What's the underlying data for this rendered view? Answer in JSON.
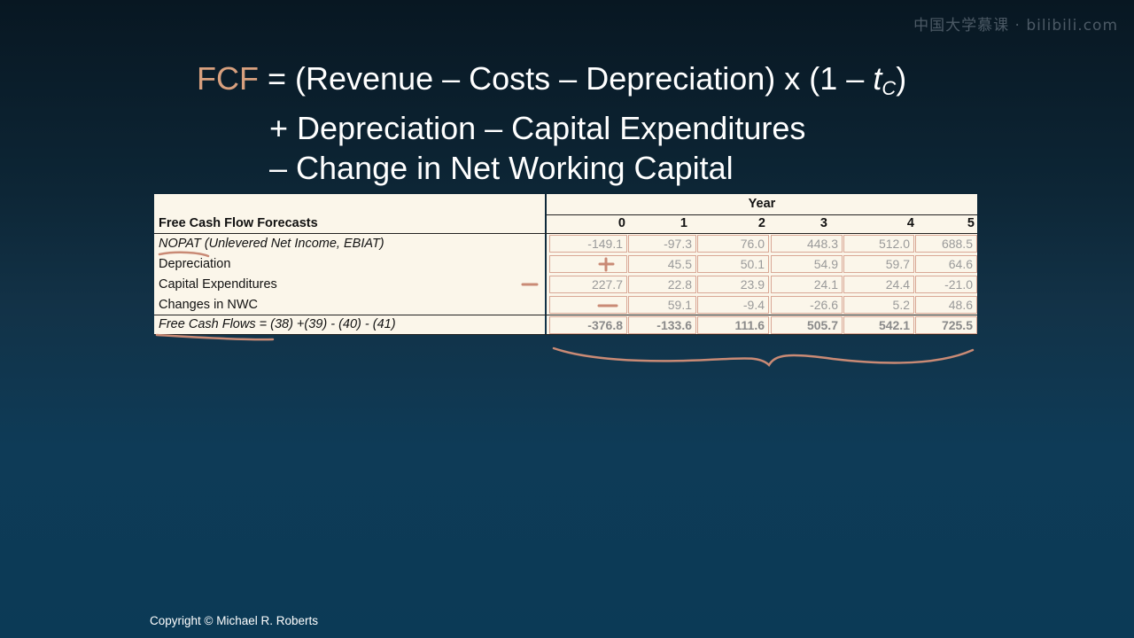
{
  "watermark": "中国大学慕课 · bilibili.com",
  "formula": {
    "fcf": "FCF",
    "line1": "= (Revenue – Costs – Depreciation) x (1 – ",
    "tc_t": "t",
    "tc_sub": "C",
    "line1_end": ")",
    "line2": "+ Depreciation – Capital Expenditures",
    "line3": "– Change in Net Working Capital"
  },
  "table": {
    "title": "Free Cash Flow Forecasts",
    "year_label": "Year",
    "years": [
      "0",
      "1",
      "2",
      "3",
      "4",
      "5"
    ],
    "rows": [
      {
        "label": "NOPAT (Unlevered Net Income, EBIAT)",
        "values": [
          "-149.1",
          "-97.3",
          "76.0",
          "448.3",
          "512.0",
          "688.5"
        ]
      },
      {
        "label": "Depreciation",
        "values": [
          "",
          "45.5",
          "50.1",
          "54.9",
          "59.7",
          "64.6"
        ]
      },
      {
        "label": "Capital Expenditures",
        "values": [
          "227.7",
          "22.8",
          "23.9",
          "24.1",
          "24.4",
          "-21.0"
        ]
      },
      {
        "label": "Changes in NWC",
        "values": [
          "",
          "59.1",
          "-9.4",
          "-26.6",
          "5.2",
          "48.6"
        ]
      },
      {
        "label": "Free Cash Flows = (38) +(39) - (40) - (41)",
        "values": [
          "-376.8",
          "-133.6",
          "111.6",
          "505.7",
          "542.1",
          "725.5"
        ]
      }
    ]
  },
  "copyright": "Copyright © Michael R. Roberts",
  "colors": {
    "fcf_accent": "#d8a07e",
    "annotation": "#c98a75",
    "table_bg": "#fbf6ea"
  }
}
